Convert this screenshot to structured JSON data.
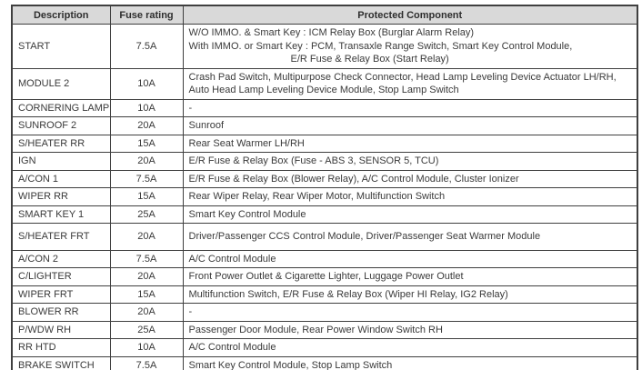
{
  "colors": {
    "header_bg": "#d9d9d9",
    "border": "#3f3f3f",
    "text": "#3a3a3a",
    "page_bg": "#ffffff"
  },
  "table": {
    "columns": [
      {
        "label": "Description"
      },
      {
        "label": "Fuse rating"
      },
      {
        "label": "Protected Component"
      }
    ],
    "rows": [
      {
        "description": "START",
        "rating": "7.5A",
        "component": [
          {
            "text": "W/O IMMO. & Smart Key : ICM Relay Box (Burglar Alarm Relay)",
            "indent": false
          },
          {
            "text": "With IMMO. or Smart Key : PCM, Transaxle Range Switch, Smart Key Control Module,",
            "indent": false
          },
          {
            "text": "E/R Fuse & Relay Box (Start Relay)",
            "indent": true
          }
        ]
      },
      {
        "description": "MODULE 2",
        "rating": "10A",
        "component": [
          {
            "text": "Crash Pad Switch, Multipurpose Check Connector, Head Lamp Leveling Device Actuator LH/RH,",
            "indent": false
          },
          {
            "text": "Auto Head Lamp Leveling Device Module, Stop Lamp Switch",
            "indent": false
          }
        ]
      },
      {
        "description": "CORNERING LAMP",
        "rating": "10A",
        "component": [
          {
            "text": "-",
            "indent": false
          }
        ]
      },
      {
        "description": "SUNROOF 2",
        "rating": "20A",
        "component": [
          {
            "text": "Sunroof",
            "indent": false
          }
        ]
      },
      {
        "description": "S/HEATER RR",
        "rating": "15A",
        "component": [
          {
            "text": "Rear Seat Warmer LH/RH",
            "indent": false
          }
        ]
      },
      {
        "description": "IGN",
        "rating": "20A",
        "component": [
          {
            "text": "E/R Fuse & Relay Box (Fuse - ABS 3, SENSOR 5, TCU)",
            "indent": false
          }
        ]
      },
      {
        "description": "A/CON 1",
        "rating": "7.5A",
        "component": [
          {
            "text": "E/R Fuse & Relay Box (Blower Relay), A/C Control Module, Cluster Ionizer",
            "indent": false
          }
        ]
      },
      {
        "description": "WIPER RR",
        "rating": "15A",
        "component": [
          {
            "text": "Rear Wiper Relay, Rear Wiper Motor, Multifunction Switch",
            "indent": false
          }
        ]
      },
      {
        "description": "SMART KEY 1",
        "rating": "25A",
        "component": [
          {
            "text": "Smart Key Control Module",
            "indent": false
          }
        ]
      },
      {
        "description": "S/HEATER FRT",
        "rating": "20A",
        "component": [
          {
            "text": "Driver/Passenger CCS Control Module, Driver/Passenger Seat Warmer Module",
            "indent": false
          }
        ]
      },
      {
        "description": "A/CON 2",
        "rating": "7.5A",
        "component": [
          {
            "text": "A/C Control Module",
            "indent": false
          }
        ]
      },
      {
        "description": "C/LIGHTER",
        "rating": "20A",
        "component": [
          {
            "text": "Front Power Outlet & Cigarette Lighter, Luggage Power Outlet",
            "indent": false
          }
        ]
      },
      {
        "description": "WIPER FRT",
        "rating": "15A",
        "component": [
          {
            "text": "Multifunction Switch, E/R Fuse & Relay Box (Wiper HI Relay, IG2 Relay)",
            "indent": false
          }
        ]
      },
      {
        "description": "BLOWER RR",
        "rating": "20A",
        "component": [
          {
            "text": "-",
            "indent": false
          }
        ]
      },
      {
        "description": "P/WDW RH",
        "rating": "25A",
        "component": [
          {
            "text": "Passenger Door Module, Rear Power Window Switch RH",
            "indent": false
          }
        ]
      },
      {
        "description": "RR HTD",
        "rating": "10A",
        "component": [
          {
            "text": "A/C Control Module",
            "indent": false
          }
        ]
      },
      {
        "description": "BRAKE SWITCH",
        "rating": "7.5A",
        "component": [
          {
            "text": "Smart Key Control Module, Stop Lamp Switch",
            "indent": false
          }
        ]
      }
    ]
  }
}
